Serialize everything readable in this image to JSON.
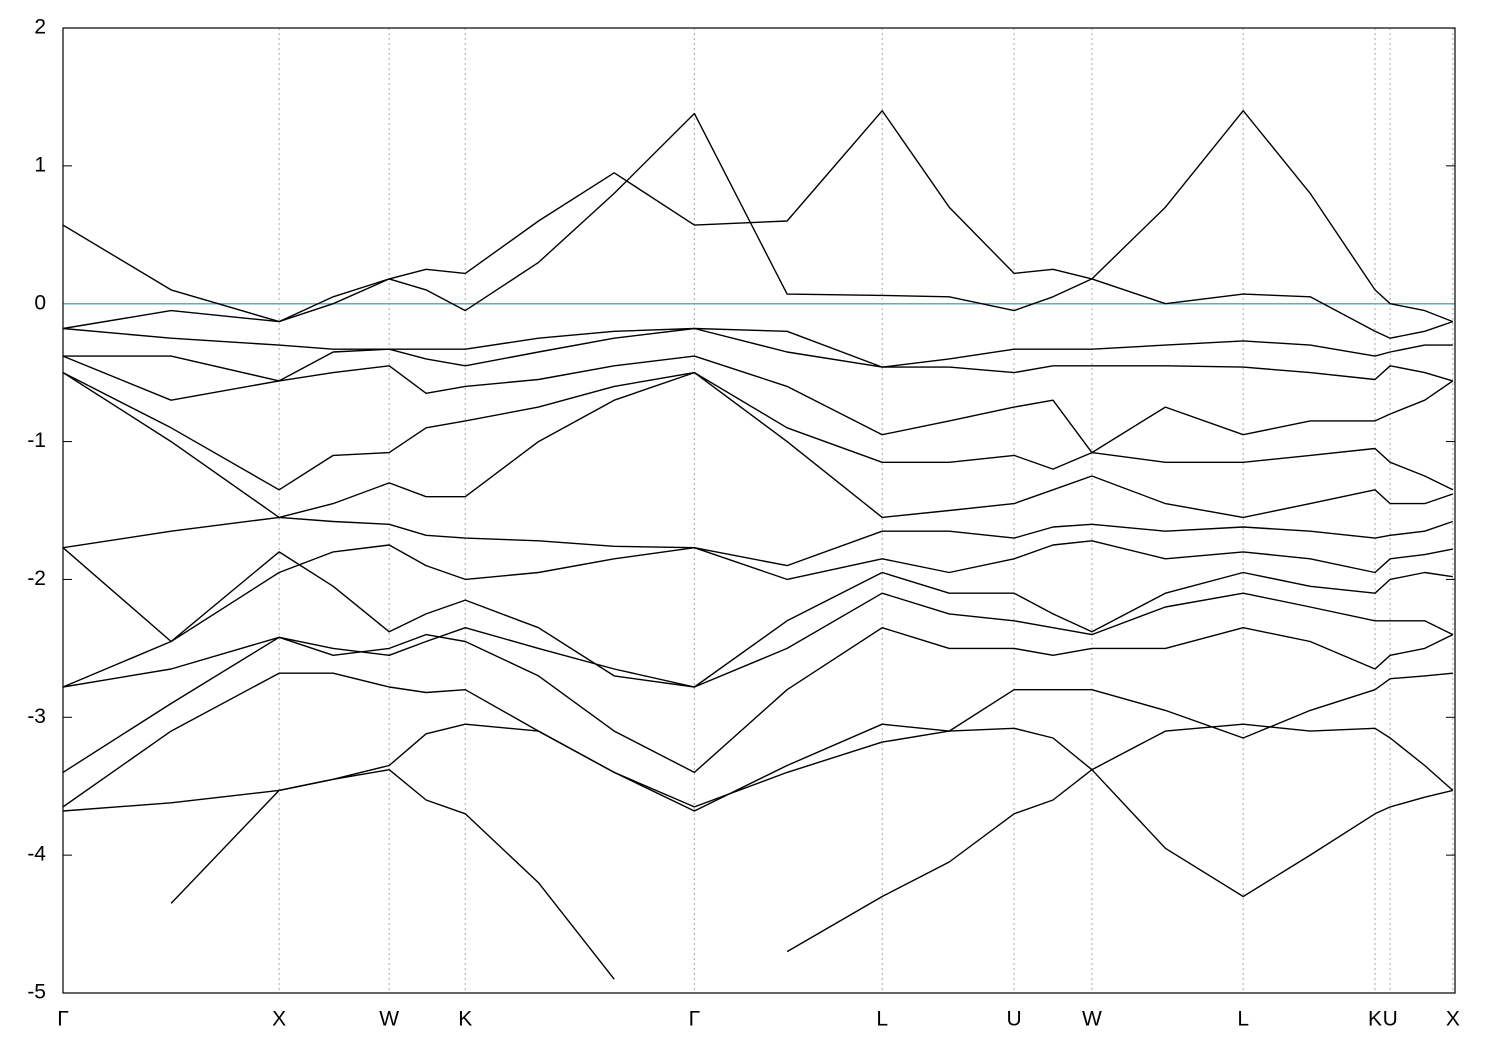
{
  "chart_data": {
    "type": "band_structure",
    "xlim": [
      0,
      6.44
    ],
    "ylim": [
      -5,
      2
    ],
    "yticks": [
      -5,
      -4,
      -3,
      -2,
      -1,
      0,
      1,
      2
    ],
    "xticks": [
      {
        "value": 0,
        "label": "Γ"
      },
      {
        "value": 1.0,
        "label": "X"
      },
      {
        "value": 1.509,
        "label": "W"
      },
      {
        "value": 1.861,
        "label": "K"
      },
      {
        "value": 2.921,
        "label": "Γ"
      },
      {
        "value": 3.79,
        "label": "L"
      },
      {
        "value": 4.4,
        "label": "U"
      },
      {
        "value": 4.76,
        "label": "W"
      },
      {
        "value": 5.46,
        "label": "L"
      },
      {
        "value": 6.07,
        "label": "K"
      },
      {
        "value": 6.14,
        "label": "U"
      },
      {
        "value": 6.43,
        "label": "X"
      }
    ],
    "grid": true,
    "fermi_level": 0,
    "fermi_color": "#5aaec8",
    "band_color": "#000000",
    "x": [
      0,
      0.5,
      1.0,
      1.25,
      1.509,
      1.68,
      1.861,
      2.2,
      2.55,
      2.921,
      3.35,
      3.79,
      4.1,
      4.4,
      4.58,
      4.76,
      5.1,
      5.46,
      5.77,
      6.07,
      6.14,
      6.3,
      6.43
    ],
    "bands": [
      [
        null,
        -4.35,
        -3.53,
        -3.45,
        -3.38,
        -3.6,
        -3.7,
        -4.2,
        -4.9,
        null,
        -4.7,
        -4.3,
        -4.05,
        -3.7,
        -3.6,
        -3.38,
        -3.95,
        -4.3,
        -4.0,
        -3.7,
        -3.65,
        -3.58,
        -3.53
      ],
      [
        -3.68,
        -3.62,
        -3.53,
        -3.45,
        -3.35,
        -3.12,
        -3.05,
        -3.1,
        -3.4,
        -3.68,
        -3.35,
        -3.05,
        -3.1,
        -3.08,
        -3.15,
        -3.38,
        -3.1,
        -3.05,
        -3.1,
        -3.08,
        -3.15,
        -3.35,
        -3.53
      ],
      [
        -3.65,
        -3.1,
        -2.68,
        -2.68,
        -2.78,
        -2.82,
        -2.8,
        -3.1,
        -3.4,
        -3.65,
        -3.4,
        -3.18,
        -3.1,
        -2.8,
        -2.8,
        -2.8,
        -2.95,
        -3.15,
        -2.95,
        -2.8,
        -2.72,
        -2.7,
        -2.68
      ],
      [
        -3.4,
        -2.9,
        -2.42,
        -2.55,
        -2.5,
        -2.4,
        -2.45,
        -2.7,
        -3.1,
        -3.4,
        -2.8,
        -2.35,
        -2.5,
        -2.5,
        -2.55,
        -2.5,
        -2.5,
        -2.35,
        -2.45,
        -2.65,
        -2.55,
        -2.5,
        -2.4
      ],
      [
        -2.78,
        -2.65,
        -2.42,
        -2.5,
        -2.55,
        -2.45,
        -2.35,
        -2.5,
        -2.65,
        -2.78,
        -2.5,
        -2.1,
        -2.25,
        -2.3,
        -2.35,
        -2.4,
        -2.2,
        -2.1,
        -2.2,
        -2.3,
        -2.3,
        -2.3,
        -2.4
      ],
      [
        -2.78,
        -2.45,
        -1.8,
        -2.05,
        -2.38,
        -2.25,
        -2.15,
        -2.35,
        -2.7,
        -2.78,
        -2.3,
        -1.95,
        -2.1,
        -2.1,
        -2.25,
        -2.38,
        -2.1,
        -1.95,
        -2.05,
        -2.1,
        -2.0,
        -1.95,
        -1.98
      ],
      [
        -1.77,
        -2.45,
        -1.95,
        -1.8,
        -1.75,
        -1.9,
        -2.0,
        -1.95,
        -1.85,
        -1.77,
        -2.0,
        -1.85,
        -1.95,
        -1.85,
        -1.75,
        -1.72,
        -1.85,
        -1.8,
        -1.85,
        -1.95,
        -1.85,
        -1.82,
        -1.78
      ],
      [
        -1.77,
        -1.65,
        -1.55,
        -1.58,
        -1.6,
        -1.68,
        -1.7,
        -1.72,
        -1.76,
        -1.77,
        -1.9,
        -1.65,
        -1.65,
        -1.7,
        -1.62,
        -1.6,
        -1.65,
        -1.62,
        -1.65,
        -1.7,
        -1.68,
        -1.65,
        -1.58
      ],
      [
        -0.5,
        -1.0,
        -1.55,
        -1.45,
        -1.3,
        -1.4,
        -1.4,
        -1.0,
        -0.7,
        -0.5,
        -1.0,
        -1.55,
        -1.5,
        -1.45,
        -1.35,
        -1.25,
        -1.45,
        -1.55,
        -1.45,
        -1.35,
        -1.45,
        -1.45,
        -1.38
      ],
      [
        -0.5,
        -0.9,
        -1.35,
        -1.1,
        -1.08,
        -0.9,
        -0.85,
        -0.75,
        -0.6,
        -0.5,
        -0.9,
        -1.15,
        -1.15,
        -1.1,
        -1.2,
        -1.08,
        -1.15,
        -1.15,
        -1.1,
        -1.05,
        -1.15,
        -1.25,
        -1.35
      ],
      [
        -0.38,
        -0.7,
        -0.56,
        -0.5,
        -0.45,
        -0.65,
        -0.6,
        -0.55,
        -0.45,
        -0.38,
        -0.6,
        -0.95,
        -0.85,
        -0.75,
        -0.7,
        -1.08,
        -0.75,
        -0.95,
        -0.85,
        -0.85,
        -0.8,
        -0.7,
        -0.56
      ],
      [
        -0.38,
        -0.38,
        -0.56,
        -0.35,
        -0.33,
        -0.4,
        -0.45,
        -0.35,
        -0.25,
        -0.18,
        -0.35,
        -0.46,
        -0.46,
        -0.5,
        -0.45,
        -0.45,
        -0.45,
        -0.46,
        -0.5,
        -0.55,
        -0.45,
        -0.5,
        -0.56
      ],
      [
        -0.18,
        -0.25,
        -0.3,
        -0.33,
        -0.33,
        -0.33,
        -0.33,
        -0.25,
        -0.2,
        -0.18,
        -0.2,
        -0.46,
        -0.4,
        -0.33,
        -0.33,
        -0.33,
        -0.3,
        -0.27,
        -0.3,
        -0.38,
        -0.35,
        -0.3,
        -0.3
      ],
      [
        -0.18,
        -0.05,
        -0.13,
        0.0,
        0.18,
        0.1,
        -0.05,
        0.3,
        0.8,
        1.38,
        0.07,
        0.06,
        0.05,
        -0.05,
        0.05,
        0.18,
        0.0,
        0.07,
        0.05,
        -0.2,
        -0.25,
        -0.2,
        -0.13
      ],
      [
        0.57,
        0.1,
        -0.13,
        0.05,
        0.18,
        0.25,
        0.22,
        0.6,
        0.95,
        0.57,
        0.6,
        1.4,
        0.7,
        0.22,
        0.25,
        0.18,
        0.7,
        1.4,
        0.8,
        0.1,
        0.0,
        -0.05,
        -0.13
      ]
    ]
  }
}
